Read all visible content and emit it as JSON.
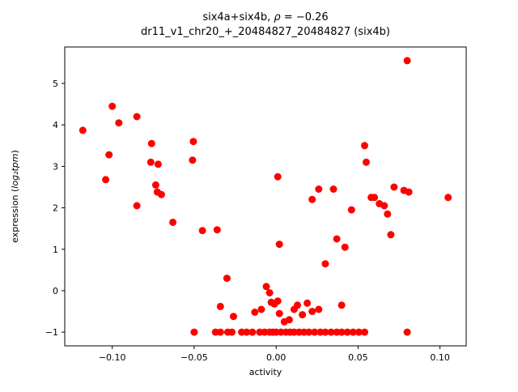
{
  "labels": {
    "title_prefix": "six4a+six4b, ",
    "title_rho": "ρ",
    "title_rest": " = −0.26",
    "ylabel_prefix": "expression (",
    "ylabel_math": "log₂tpm",
    "ylabel_suffix": ")"
  },
  "chart_data": {
    "type": "scatter",
    "title": "six4a+six4b, ρ = −0.26",
    "subtitle": "dr11_v1_chr20_+_20484827_20484827 (six4b)",
    "xlabel": "activity",
    "ylabel": "expression (log₂tpm)",
    "xlim": [
      -0.129,
      0.116
    ],
    "ylim": [
      -1.33,
      5.88
    ],
    "xticks": [
      -0.1,
      -0.05,
      0.0,
      0.05,
      0.1
    ],
    "xtick_labels": [
      "−0.10",
      "−0.05",
      "0.00",
      "0.05",
      "0.10"
    ],
    "yticks": [
      -1,
      0,
      1,
      2,
      3,
      4,
      5
    ],
    "ytick_labels": [
      "−1",
      "0",
      "1",
      "2",
      "3",
      "4",
      "5"
    ],
    "marker_color": "#ff0000",
    "grid": false,
    "legend": null,
    "points": [
      [
        -0.118,
        3.87
      ],
      [
        -0.104,
        2.68
      ],
      [
        -0.102,
        3.28
      ],
      [
        -0.1,
        4.45
      ],
      [
        -0.096,
        4.05
      ],
      [
        -0.085,
        4.2
      ],
      [
        -0.085,
        2.05
      ],
      [
        -0.076,
        3.55
      ],
      [
        -0.0765,
        3.1
      ],
      [
        -0.072,
        3.05
      ],
      [
        -0.0735,
        2.55
      ],
      [
        -0.0725,
        2.38
      ],
      [
        -0.07,
        2.32
      ],
      [
        -0.063,
        1.65
      ],
      [
        -0.0505,
        3.6
      ],
      [
        -0.051,
        3.15
      ],
      [
        -0.045,
        1.45
      ],
      [
        -0.036,
        1.47
      ],
      [
        -0.034,
        -0.38
      ],
      [
        -0.03,
        0.3
      ],
      [
        -0.026,
        -0.62
      ],
      [
        -0.05,
        -1.0
      ],
      [
        -0.037,
        -1.0
      ],
      [
        -0.034,
        -1.0
      ],
      [
        -0.0295,
        -1.0
      ],
      [
        -0.027,
        -1.0
      ],
      [
        -0.021,
        -1.0
      ],
      [
        -0.018,
        -1.0
      ],
      [
        -0.0145,
        -1.0
      ],
      [
        -0.01,
        -1.0
      ],
      [
        -0.007,
        -1.0
      ],
      [
        -0.004,
        -1.0
      ],
      [
        -0.002,
        -1.0
      ],
      [
        0.0,
        -1.0
      ],
      [
        0.003,
        -1.0
      ],
      [
        0.006,
        -1.0
      ],
      [
        0.0085,
        -1.0
      ],
      [
        0.011,
        -1.0
      ],
      [
        0.014,
        -1.0
      ],
      [
        0.017,
        -1.0
      ],
      [
        0.02,
        -1.0
      ],
      [
        0.0235,
        -1.0
      ],
      [
        0.027,
        -1.0
      ],
      [
        0.03,
        -1.0
      ],
      [
        0.0335,
        -1.0
      ],
      [
        0.037,
        -1.0
      ],
      [
        0.04,
        -1.0
      ],
      [
        0.0435,
        -1.0
      ],
      [
        0.047,
        -1.0
      ],
      [
        0.0505,
        -1.0
      ],
      [
        0.054,
        -1.0
      ],
      [
        0.08,
        -1.0
      ],
      [
        -0.013,
        -0.52
      ],
      [
        -0.009,
        -0.45
      ],
      [
        -0.006,
        0.1
      ],
      [
        -0.004,
        -0.05
      ],
      [
        -0.003,
        -0.28
      ],
      [
        -0.001,
        -0.32
      ],
      [
        0.001,
        -0.25
      ],
      [
        0.002,
        -0.55
      ],
      [
        0.005,
        -0.75
      ],
      [
        0.008,
        -0.7
      ],
      [
        0.011,
        -0.45
      ],
      [
        0.013,
        -0.35
      ],
      [
        0.016,
        -0.58
      ],
      [
        0.019,
        -0.3
      ],
      [
        0.022,
        -0.5
      ],
      [
        0.026,
        -0.45
      ],
      [
        0.04,
        -0.35
      ],
      [
        0.001,
        2.75
      ],
      [
        0.002,
        1.12
      ],
      [
        0.022,
        2.2
      ],
      [
        0.026,
        2.45
      ],
      [
        0.03,
        0.65
      ],
      [
        0.035,
        2.45
      ],
      [
        0.037,
        1.25
      ],
      [
        0.042,
        1.05
      ],
      [
        0.046,
        1.95
      ],
      [
        0.054,
        3.5
      ],
      [
        0.055,
        3.1
      ],
      [
        0.058,
        2.25
      ],
      [
        0.06,
        2.25
      ],
      [
        0.063,
        2.1
      ],
      [
        0.066,
        2.05
      ],
      [
        0.068,
        1.85
      ],
      [
        0.07,
        1.35
      ],
      [
        0.072,
        2.5
      ],
      [
        0.078,
        2.42
      ],
      [
        0.081,
        2.38
      ],
      [
        0.08,
        5.55
      ],
      [
        0.105,
        2.25
      ]
    ]
  }
}
